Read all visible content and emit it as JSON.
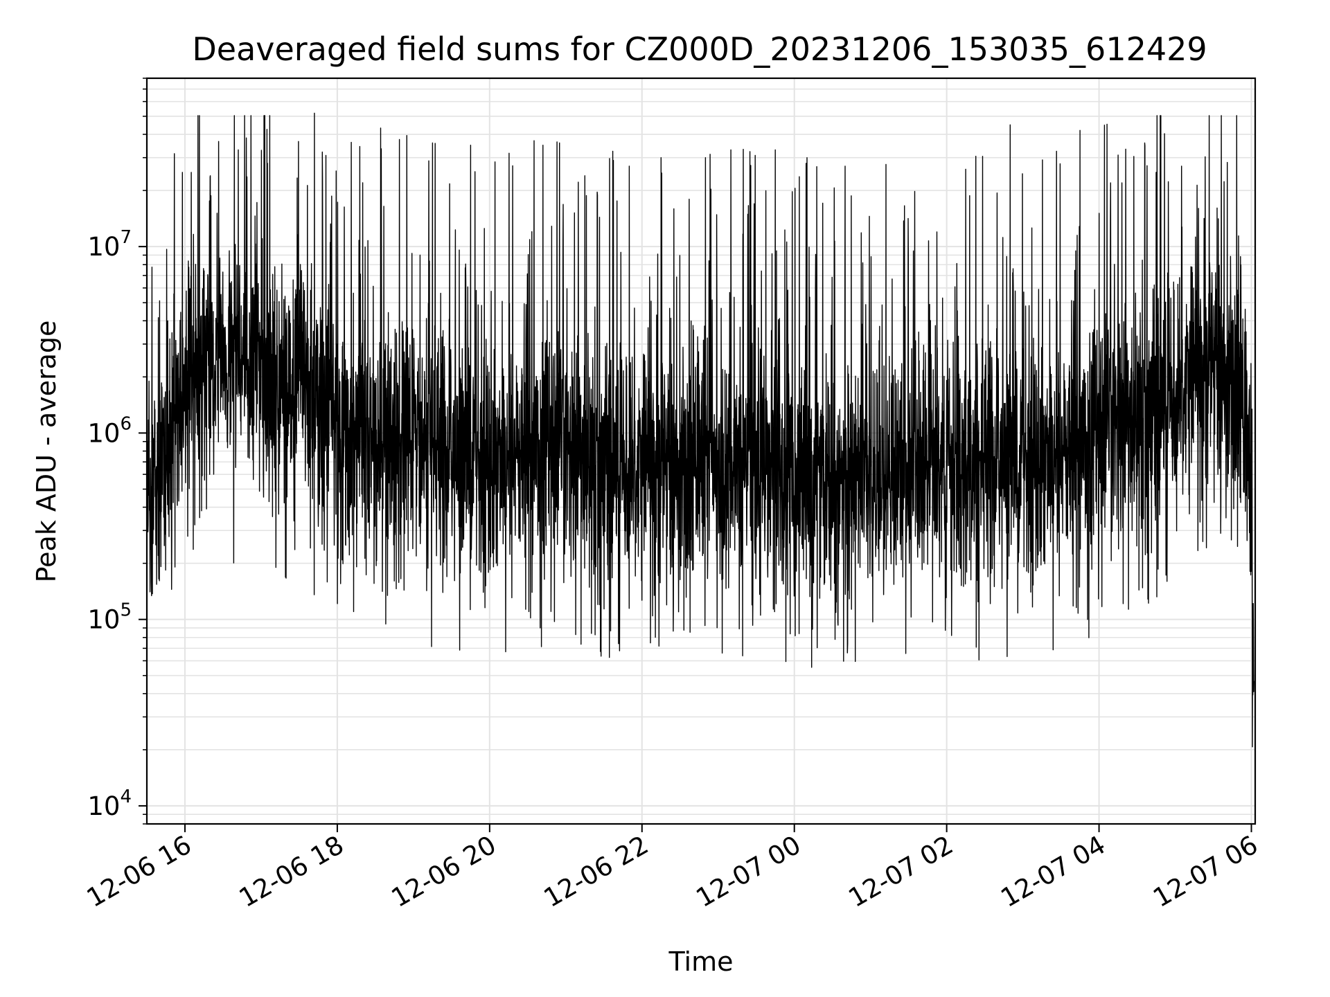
{
  "chart_data": {
    "type": "line",
    "title": "Deaveraged field sums for CZ000D_20231206_153035_612429",
    "xlabel": "Time",
    "ylabel": "Peak ADU - average",
    "xlim": [
      "2023-12-06 15:30",
      "2023-12-07 06:03"
    ],
    "ylim": [
      8000,
      80000000
    ],
    "yscale": "log",
    "grid": "both (major and minor), light gray",
    "line_color": "#000000",
    "x_ticks": [
      {
        "value": "2023-12-06 16:00",
        "label": "12-06 16"
      },
      {
        "value": "2023-12-06 18:00",
        "label": "12-06 18"
      },
      {
        "value": "2023-12-06 20:00",
        "label": "12-06 20"
      },
      {
        "value": "2023-12-06 22:00",
        "label": "12-06 22"
      },
      {
        "value": "2023-12-07 00:00",
        "label": "12-07 00"
      },
      {
        "value": "2023-12-07 02:00",
        "label": "12-07 02"
      },
      {
        "value": "2023-12-07 04:00",
        "label": "12-07 04"
      },
      {
        "value": "2023-12-07 06:00",
        "label": "12-07 06"
      }
    ],
    "y_ticks": [
      {
        "value": 10000,
        "base": "10",
        "exp": "4"
      },
      {
        "value": 100000,
        "base": "10",
        "exp": "5"
      },
      {
        "value": 1000000,
        "base": "10",
        "exp": "6"
      },
      {
        "value": 10000000,
        "base": "10",
        "exp": "7"
      }
    ],
    "series": [
      {
        "x": [
          "2023-12-06 15:30",
          "2023-12-06 15:45",
          "2023-12-06 16:00",
          "2023-12-06 16:15",
          "2023-12-06 16:30",
          "2023-12-06 16:45",
          "2023-12-06 17:00",
          "2023-12-06 17:15",
          "2023-12-06 17:30",
          "2023-12-06 17:45",
          "2023-12-06 18:00",
          "2023-12-06 18:30",
          "2023-12-06 19:00",
          "2023-12-06 19:30",
          "2023-12-06 20:00",
          "2023-12-06 20:30",
          "2023-12-06 21:00",
          "2023-12-06 21:30",
          "2023-12-06 22:00",
          "2023-12-06 22:30",
          "2023-12-06 23:00",
          "2023-12-06 23:30",
          "2023-12-07 00:00",
          "2023-12-07 00:30",
          "2023-12-07 01:00",
          "2023-12-07 01:30",
          "2023-12-07 02:00",
          "2023-12-07 02:30",
          "2023-12-07 03:00",
          "2023-12-07 03:30",
          "2023-12-07 04:00",
          "2023-12-07 04:30",
          "2023-12-07 05:00",
          "2023-12-07 05:30",
          "2023-12-07 05:50",
          "2023-12-07 06:00",
          "2023-12-07 06:02"
        ],
        "y": [
          400000,
          700000,
          2000000,
          2500000,
          2500000,
          2500000,
          2000000,
          2000000,
          2000000,
          1500000,
          1000000,
          900000,
          850000,
          800000,
          750000,
          800000,
          750000,
          700000,
          700000,
          700000,
          700000,
          650000,
          600000,
          500000,
          600000,
          650000,
          700000,
          700000,
          750000,
          800000,
          900000,
          1200000,
          1800000,
          2500000,
          2000000,
          500000,
          30000
        ]
      }
    ],
    "spikes": [
      {
        "x": "2023-12-06 15:58",
        "y": 25000000
      },
      {
        "x": "2023-12-06 16:05",
        "y": 25000000
      },
      {
        "x": "2023-12-06 16:20",
        "y": 24000000
      },
      {
        "x": "2023-12-06 16:42",
        "y": 33000000
      },
      {
        "x": "2023-12-06 17:05",
        "y": 28000000
      },
      {
        "x": "2023-12-06 17:42",
        "y": 52000000
      },
      {
        "x": "2023-12-06 18:20",
        "y": 22000000
      },
      {
        "x": "2023-12-06 19:15",
        "y": 36000000
      },
      {
        "x": "2023-12-06 19:45",
        "y": 35000000
      },
      {
        "x": "2023-12-06 20:35",
        "y": 37000000
      },
      {
        "x": "2023-12-06 20:42",
        "y": 35000000
      },
      {
        "x": "2023-12-06 21:15",
        "y": 24000000
      },
      {
        "x": "2023-12-06 21:50",
        "y": 27000000
      },
      {
        "x": "2023-12-06 22:15",
        "y": 30000000
      },
      {
        "x": "2023-12-06 22:50",
        "y": 30000000
      },
      {
        "x": "2023-12-06 23:10",
        "y": 33000000
      },
      {
        "x": "2023-12-06 23:45",
        "y": 33000000
      },
      {
        "x": "2023-12-07 00:10",
        "y": 30000000
      },
      {
        "x": "2023-12-07 00:40",
        "y": 27000000
      },
      {
        "x": "2023-12-07 02:15",
        "y": 26000000
      },
      {
        "x": "2023-12-07 02:50",
        "y": 45000000
      },
      {
        "x": "2023-12-07 03:45",
        "y": 42000000
      },
      {
        "x": "2023-12-07 04:15",
        "y": 31000000
      },
      {
        "x": "2023-12-07 04:45",
        "y": 25000000
      },
      {
        "x": "2023-12-07 05:05",
        "y": 27000000
      }
    ]
  }
}
